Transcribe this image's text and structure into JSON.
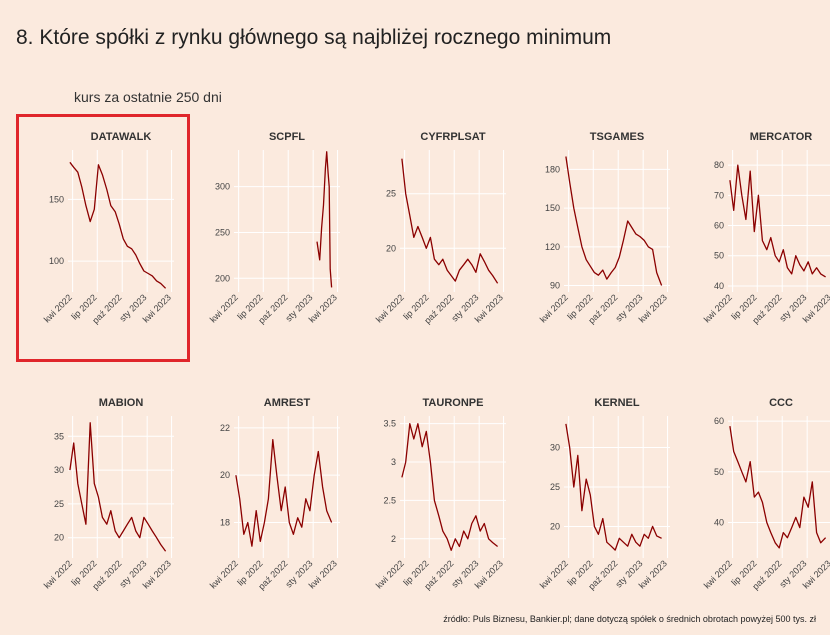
{
  "header": {
    "title": "8. Które spółki z rynku głównego są najbliżej rocznego minimum",
    "subtitle": "kurs za ostatnie 250 dni"
  },
  "footer": {
    "source": "źródło: Puls Biznesu, Bankier.pl; dane dotyczą spółek o średnich obrotach powyżej 500 tys. zł"
  },
  "colors": {
    "background": "#fbeade",
    "line": "#8b0000",
    "highlight": "#e0262b",
    "grid": "#ffffff"
  },
  "chart_data": [
    {
      "type": "line",
      "title": "DATAWALK",
      "highlighted": true,
      "x_ticks": [
        "kwi 2022",
        "lip 2022",
        "paź 2022",
        "sty 2023",
        "kwi 2023"
      ],
      "y_ticks": [
        100,
        150
      ],
      "ylim": [
        75,
        190
      ],
      "series": [
        {
          "x": [
            "2022-03-22",
            "2022-04-05",
            "2022-04-20",
            "2022-05-05",
            "2022-05-20",
            "2022-06-05",
            "2022-06-20",
            "2022-07-05",
            "2022-07-20",
            "2022-08-05",
            "2022-08-20",
            "2022-09-05",
            "2022-09-20",
            "2022-10-05",
            "2022-10-20",
            "2022-11-05",
            "2022-11-20",
            "2022-12-05",
            "2022-12-20",
            "2023-01-05",
            "2023-01-20",
            "2023-02-05",
            "2023-02-20",
            "2023-03-10"
          ],
          "y": [
            180,
            176,
            172,
            160,
            145,
            132,
            142,
            178,
            170,
            158,
            145,
            140,
            130,
            118,
            112,
            110,
            105,
            98,
            92,
            90,
            88,
            84,
            82,
            78
          ]
        }
      ]
    },
    {
      "type": "line",
      "title": "SCPFL",
      "x_ticks": [
        "kwi 2022",
        "lip 2022",
        "paź 2022",
        "sty 2023",
        "kwi 2023"
      ],
      "y_ticks": [
        200,
        250,
        300
      ],
      "ylim": [
        185,
        340
      ],
      "series": [
        {
          "x": [
            "2023-01-15",
            "2023-01-25",
            "2023-02-01",
            "2023-02-08",
            "2023-02-15",
            "2023-02-20",
            "2023-02-25",
            "2023-03-01",
            "2023-03-05",
            "2023-03-10"
          ],
          "y": [
            240,
            220,
            255,
            280,
            320,
            338,
            315,
            300,
            210,
            190
          ]
        }
      ]
    },
    {
      "type": "line",
      "title": "CYFRPLSAT",
      "x_ticks": [
        "kwi 2022",
        "lip 2022",
        "paź 2022",
        "sty 2023",
        "kwi 2023"
      ],
      "y_ticks": [
        20,
        25
      ],
      "ylim": [
        16,
        29
      ],
      "series": [
        {
          "x": [
            "2022-03-22",
            "2022-04-05",
            "2022-04-20",
            "2022-05-05",
            "2022-05-20",
            "2022-06-05",
            "2022-06-20",
            "2022-07-05",
            "2022-07-20",
            "2022-08-05",
            "2022-08-20",
            "2022-09-05",
            "2022-09-20",
            "2022-10-05",
            "2022-10-20",
            "2022-11-05",
            "2022-11-20",
            "2022-12-05",
            "2022-12-20",
            "2023-01-05",
            "2023-01-20",
            "2023-02-05",
            "2023-02-20",
            "2023-03-10"
          ],
          "y": [
            28.2,
            25,
            23,
            21,
            22,
            21,
            20,
            21,
            19,
            18.5,
            19,
            18,
            17.5,
            17,
            18,
            18.5,
            19,
            18.5,
            17.8,
            19.5,
            18.8,
            18,
            17.5,
            16.8
          ]
        }
      ]
    },
    {
      "type": "line",
      "title": "TSGAMES",
      "x_ticks": [
        "kwi 2022",
        "lip 2022",
        "paź 2022",
        "sty 2023",
        "kwi 2023"
      ],
      "y_ticks": [
        90,
        120,
        150,
        180
      ],
      "ylim": [
        85,
        195
      ],
      "series": [
        {
          "x": [
            "2022-03-22",
            "2022-04-05",
            "2022-04-20",
            "2022-05-05",
            "2022-05-20",
            "2022-06-05",
            "2022-06-20",
            "2022-07-05",
            "2022-07-20",
            "2022-08-05",
            "2022-08-20",
            "2022-09-05",
            "2022-09-20",
            "2022-10-05",
            "2022-10-20",
            "2022-11-05",
            "2022-11-20",
            "2022-12-05",
            "2022-12-20",
            "2023-01-05",
            "2023-01-20",
            "2023-02-05",
            "2023-02-20",
            "2023-03-10"
          ],
          "y": [
            190,
            170,
            150,
            135,
            120,
            110,
            105,
            100,
            98,
            102,
            95,
            100,
            104,
            112,
            125,
            140,
            135,
            130,
            128,
            125,
            120,
            118,
            100,
            90
          ]
        }
      ]
    },
    {
      "type": "line",
      "title": "MERCATOR",
      "x_ticks": [
        "kwi 2022",
        "lip 2022",
        "paź 2022",
        "sty 2023",
        "kwi 2023"
      ],
      "y_ticks": [
        40,
        50,
        60,
        70,
        80
      ],
      "ylim": [
        38,
        85
      ],
      "series": [
        {
          "x": [
            "2022-03-22",
            "2022-04-05",
            "2022-04-20",
            "2022-05-05",
            "2022-05-20",
            "2022-06-05",
            "2022-06-20",
            "2022-07-05",
            "2022-07-20",
            "2022-08-05",
            "2022-08-20",
            "2022-09-05",
            "2022-09-20",
            "2022-10-05",
            "2022-10-20",
            "2022-11-05",
            "2022-11-20",
            "2022-12-05",
            "2022-12-20",
            "2023-01-05",
            "2023-01-20",
            "2023-02-05",
            "2023-02-20",
            "2023-03-10"
          ],
          "y": [
            75,
            65,
            80,
            70,
            62,
            78,
            58,
            70,
            55,
            52,
            56,
            50,
            48,
            52,
            46,
            44,
            50,
            47,
            45,
            48,
            44,
            46,
            44,
            43
          ]
        }
      ]
    },
    {
      "type": "line",
      "title": "MABION",
      "x_ticks": [
        "kwi 2022",
        "lip 2022",
        "paź 2022",
        "sty 2023",
        "kwi 2023"
      ],
      "y_ticks": [
        20,
        25,
        30,
        35
      ],
      "ylim": [
        17,
        38
      ],
      "series": [
        {
          "x": [
            "2022-03-22",
            "2022-04-05",
            "2022-04-20",
            "2022-05-05",
            "2022-05-20",
            "2022-06-05",
            "2022-06-20",
            "2022-07-05",
            "2022-07-20",
            "2022-08-05",
            "2022-08-20",
            "2022-09-05",
            "2022-09-20",
            "2022-10-05",
            "2022-10-20",
            "2022-11-05",
            "2022-11-20",
            "2022-12-05",
            "2022-12-20",
            "2023-01-05",
            "2023-01-20",
            "2023-02-05",
            "2023-02-20",
            "2023-03-10"
          ],
          "y": [
            30,
            34,
            28,
            25,
            22,
            37,
            28,
            26,
            23,
            22,
            24,
            21,
            20,
            21,
            22,
            23,
            21,
            20,
            23,
            22,
            21,
            20,
            19,
            18
          ]
        }
      ]
    },
    {
      "type": "line",
      "title": "AMREST",
      "x_ticks": [
        "kwi 2022",
        "lip 2022",
        "paź 2022",
        "sty 2023",
        "kwi 2023"
      ],
      "y_ticks": [
        18,
        20,
        22
      ],
      "ylim": [
        16.5,
        22.5
      ],
      "series": [
        {
          "x": [
            "2022-03-22",
            "2022-04-05",
            "2022-04-20",
            "2022-05-05",
            "2022-05-20",
            "2022-06-05",
            "2022-06-20",
            "2022-07-05",
            "2022-07-20",
            "2022-08-05",
            "2022-08-20",
            "2022-09-05",
            "2022-09-20",
            "2022-10-05",
            "2022-10-20",
            "2022-11-05",
            "2022-11-20",
            "2022-12-05",
            "2022-12-20",
            "2023-01-05",
            "2023-01-20",
            "2023-02-05",
            "2023-02-20",
            "2023-03-10"
          ],
          "y": [
            20,
            19,
            17.5,
            18,
            17,
            18.5,
            17.2,
            18,
            19,
            21.5,
            20,
            18.5,
            19.5,
            18,
            17.5,
            18.2,
            17.8,
            19,
            18.5,
            20,
            21,
            19.5,
            18.5,
            18
          ]
        }
      ]
    },
    {
      "type": "line",
      "title": "TAURONPE",
      "x_ticks": [
        "kwi 2022",
        "lip 2022",
        "paź 2022",
        "sty 2023",
        "kwi 2023"
      ],
      "y_ticks": [
        2.0,
        2.5,
        3.0,
        3.5
      ],
      "ylim": [
        1.75,
        3.6
      ],
      "series": [
        {
          "x": [
            "2022-03-22",
            "2022-04-05",
            "2022-04-20",
            "2022-05-05",
            "2022-05-20",
            "2022-06-05",
            "2022-06-20",
            "2022-07-05",
            "2022-07-20",
            "2022-08-05",
            "2022-08-20",
            "2022-09-05",
            "2022-09-20",
            "2022-10-05",
            "2022-10-20",
            "2022-11-05",
            "2022-11-20",
            "2022-12-05",
            "2022-12-20",
            "2023-01-05",
            "2023-01-20",
            "2023-02-05",
            "2023-02-20",
            "2023-03-10"
          ],
          "y": [
            2.8,
            3.0,
            3.5,
            3.3,
            3.5,
            3.2,
            3.4,
            3.0,
            2.5,
            2.3,
            2.1,
            2.0,
            1.85,
            2.0,
            1.9,
            2.1,
            2.0,
            2.2,
            2.3,
            2.1,
            2.2,
            2.0,
            1.95,
            1.9
          ]
        }
      ]
    },
    {
      "type": "line",
      "title": "KERNEL",
      "x_ticks": [
        "kwi 2022",
        "lip 2022",
        "paź 2022",
        "sty 2023",
        "kwi 2023"
      ],
      "y_ticks": [
        20,
        25,
        30
      ],
      "ylim": [
        16,
        34
      ],
      "series": [
        {
          "x": [
            "2022-03-22",
            "2022-04-05",
            "2022-04-20",
            "2022-05-05",
            "2022-05-20",
            "2022-06-05",
            "2022-06-20",
            "2022-07-05",
            "2022-07-20",
            "2022-08-05",
            "2022-08-20",
            "2022-09-05",
            "2022-09-20",
            "2022-10-05",
            "2022-10-20",
            "2022-11-05",
            "2022-11-20",
            "2022-12-05",
            "2022-12-20",
            "2023-01-05",
            "2023-01-20",
            "2023-02-05",
            "2023-02-20",
            "2023-03-10"
          ],
          "y": [
            33,
            30,
            25,
            29,
            22,
            26,
            24,
            20,
            19,
            21,
            18,
            17.5,
            17,
            18.5,
            18,
            17.5,
            19,
            18,
            17.5,
            19,
            18.5,
            20,
            18.8,
            18.5
          ]
        }
      ]
    },
    {
      "type": "line",
      "title": "CCC",
      "x_ticks": [
        "kwi 2022",
        "lip 2022",
        "paź 2022",
        "sty 2023",
        "kwi 2023"
      ],
      "y_ticks": [
        40,
        50,
        60
      ],
      "ylim": [
        33,
        61
      ],
      "series": [
        {
          "x": [
            "2022-03-22",
            "2022-04-05",
            "2022-04-20",
            "2022-05-05",
            "2022-05-20",
            "2022-06-05",
            "2022-06-20",
            "2022-07-05",
            "2022-07-20",
            "2022-08-05",
            "2022-08-20",
            "2022-09-05",
            "2022-09-20",
            "2022-10-05",
            "2022-10-20",
            "2022-11-05",
            "2022-11-20",
            "2022-12-05",
            "2022-12-20",
            "2023-01-05",
            "2023-01-20",
            "2023-02-05",
            "2023-02-20",
            "2023-03-10"
          ],
          "y": [
            59,
            54,
            52,
            50,
            48,
            52,
            45,
            46,
            44,
            40,
            38,
            36,
            35,
            38,
            37,
            39,
            41,
            39,
            45,
            43,
            48,
            38,
            36,
            37
          ]
        }
      ]
    }
  ]
}
